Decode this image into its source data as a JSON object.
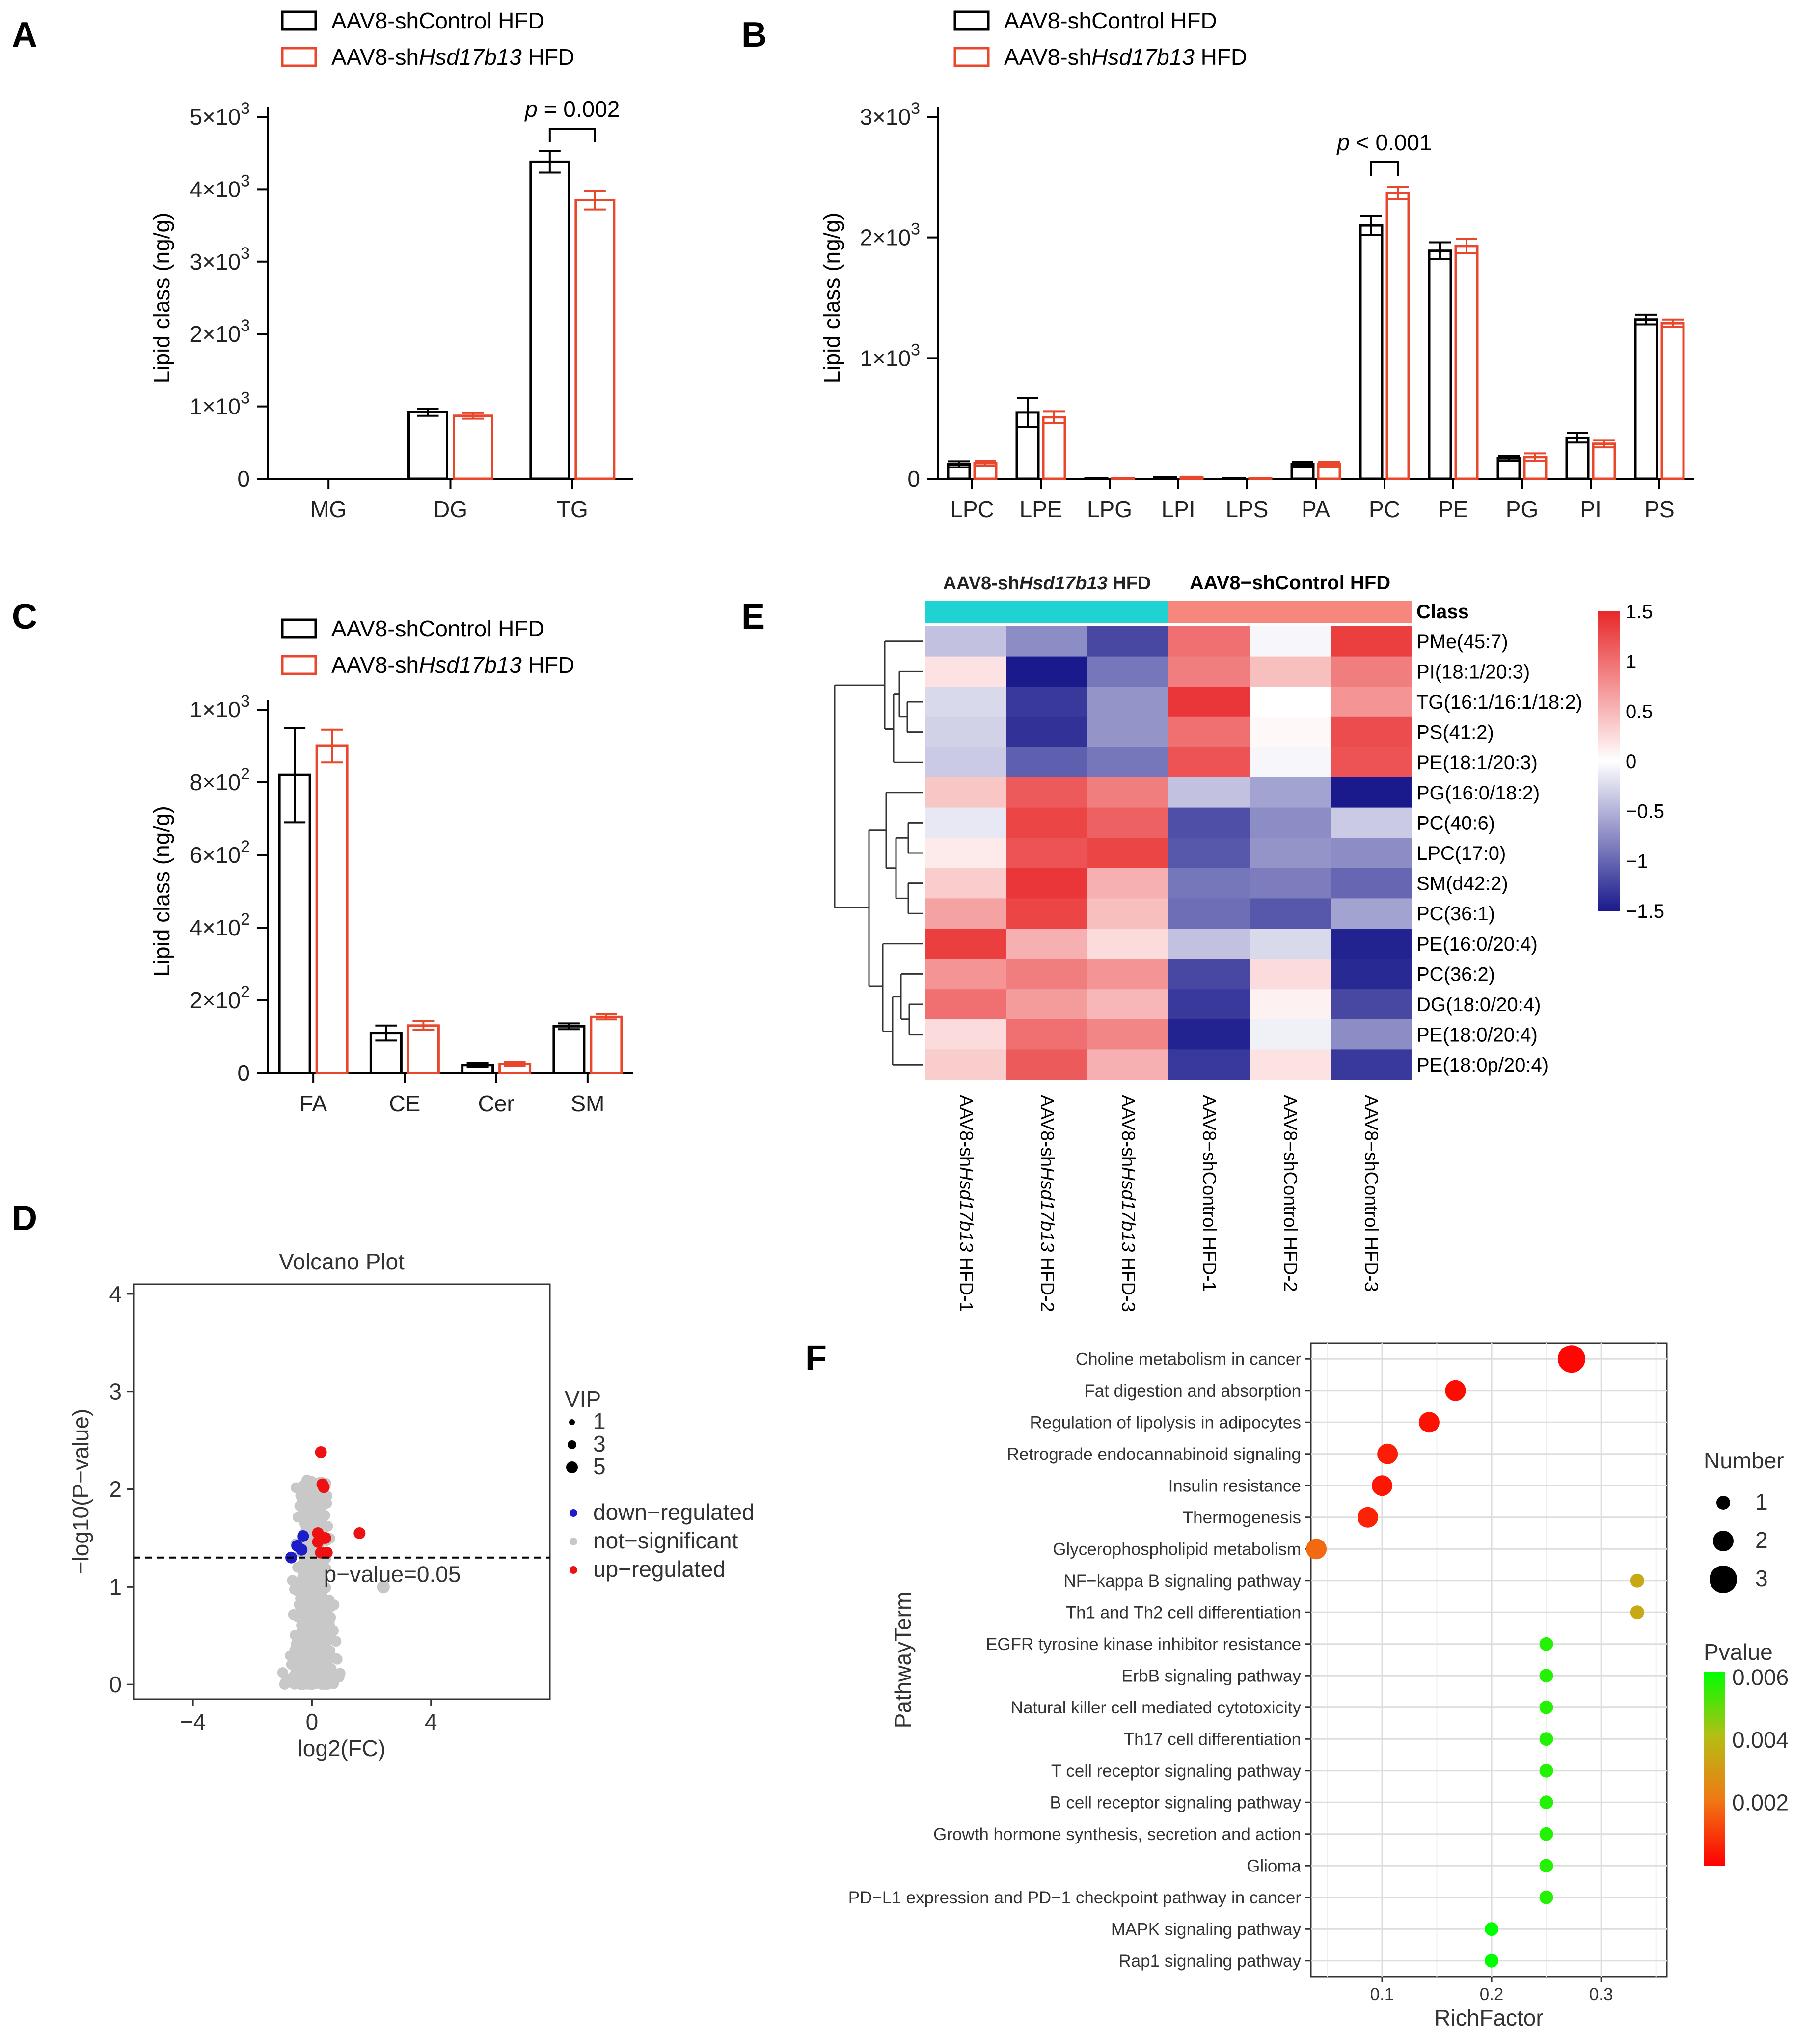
{
  "panel_labels": {
    "A": "A",
    "B": "B",
    "C": "C",
    "D": "D",
    "E": "E",
    "F": "F"
  },
  "legend_groups": {
    "control": "AAV8-shControl HFD",
    "treat_prefix": "AAV8-sh",
    "treat_gene": "Hsd17b13",
    "treat_suffix": " HFD"
  },
  "colors": {
    "control": "#000000",
    "treat": "#e8472b",
    "hm_low": "#1a1a8c",
    "hm_mid": "#ffffff",
    "hm_high": "#e8282a",
    "cyan": "#1fd3d3",
    "salmon": "#f5877c"
  },
  "chart_data": [
    {
      "id": "A",
      "type": "bar",
      "ylabel": "Lipid class (ng/g)",
      "ylim": [
        0,
        5000
      ],
      "yticks": [
        {
          "value": 0,
          "base": "0",
          "exp": ""
        },
        {
          "value": 1000,
          "base": "1×10",
          "exp": "3"
        },
        {
          "value": 2000,
          "base": "2×10",
          "exp": "3"
        },
        {
          "value": 3000,
          "base": "3×10",
          "exp": "3"
        },
        {
          "value": 4000,
          "base": "4×10",
          "exp": "3"
        },
        {
          "value": 5000,
          "base": "5×10",
          "exp": "3"
        }
      ],
      "categories": [
        "MG",
        "DG",
        "TG"
      ],
      "series": [
        {
          "name": "AAV8-shControl HFD",
          "values": [
            0,
            920,
            4380
          ],
          "errors": [
            0,
            50,
            150
          ]
        },
        {
          "name": "AAV8-shHsd17b13 HFD",
          "values": [
            0,
            870,
            3850
          ],
          "errors": [
            0,
            40,
            130
          ]
        }
      ],
      "annotation": {
        "category": "TG",
        "text": "p = 0.002",
        "p": "p",
        "rest": " = 0.002"
      }
    },
    {
      "id": "B",
      "type": "bar",
      "ylabel": "Lipid class (ng/g)",
      "ylim": [
        0,
        3000
      ],
      "yticks": [
        {
          "value": 0,
          "base": "0",
          "exp": ""
        },
        {
          "value": 1000,
          "base": "1×10",
          "exp": "3"
        },
        {
          "value": 2000,
          "base": "2×10",
          "exp": "3"
        },
        {
          "value": 3000,
          "base": "3×10",
          "exp": "3"
        }
      ],
      "categories": [
        "LPC",
        "LPE",
        "LPG",
        "LPI",
        "LPS",
        "PA",
        "PC",
        "PE",
        "PG",
        "PI",
        "PS"
      ],
      "series": [
        {
          "name": "AAV8-shControl HFD",
          "values": [
            120,
            550,
            2,
            10,
            2,
            120,
            2100,
            1890,
            170,
            340,
            1320
          ],
          "errors": [
            25,
            120,
            1,
            5,
            1,
            20,
            80,
            70,
            20,
            40,
            40
          ]
        },
        {
          "name": "AAV8-shHsd17b13 HFD",
          "values": [
            130,
            510,
            2,
            12,
            2,
            120,
            2370,
            1930,
            180,
            290,
            1290
          ],
          "errors": [
            20,
            50,
            1,
            5,
            1,
            20,
            50,
            60,
            30,
            30,
            30
          ]
        }
      ],
      "annotation": {
        "category": "PC",
        "text": "p < 0.001",
        "p": "p",
        "rest": " < 0.001"
      }
    },
    {
      "id": "C",
      "type": "bar",
      "ylabel": "Lipid class (ng/g)",
      "ylim": [
        0,
        1000
      ],
      "yticks": [
        {
          "value": 0,
          "base": "0",
          "exp": ""
        },
        {
          "value": 200,
          "base": "2×10",
          "exp": "2"
        },
        {
          "value": 400,
          "base": "4×10",
          "exp": "2"
        },
        {
          "value": 600,
          "base": "6×10",
          "exp": "2"
        },
        {
          "value": 800,
          "base": "8×10",
          "exp": "2"
        },
        {
          "value": 1000,
          "base": "1×10",
          "exp": "3"
        }
      ],
      "categories": [
        "FA",
        "CE",
        "Cer",
        "SM"
      ],
      "series": [
        {
          "name": "AAV8-shControl HFD",
          "values": [
            820,
            110,
            22,
            128
          ],
          "errors": [
            130,
            20,
            5,
            8
          ]
        },
        {
          "name": "AAV8-shHsd17b13 HFD",
          "values": [
            900,
            130,
            25,
            155
          ],
          "errors": [
            45,
            12,
            5,
            8
          ]
        }
      ]
    },
    {
      "id": "D",
      "type": "scatter",
      "title": "Volcano Plot",
      "xlabel": "log2(FC)",
      "ylabel": "−log10(P−value)",
      "xlim": [
        -6,
        8
      ],
      "ylim": [
        -0.15,
        4.1
      ],
      "xticks": [
        "−4",
        "0",
        "4"
      ],
      "xtick_values": [
        -4,
        0,
        4
      ],
      "yticks": [
        "0",
        "1",
        "2",
        "3",
        "4"
      ],
      "threshold_label": "p−value=0.05",
      "threshold": 1.3,
      "vip_title": "VIP",
      "vip_values": [
        "1",
        "3",
        "5"
      ],
      "groups": [
        "down−regulated",
        "not−significant",
        "up−regulated"
      ],
      "down_points": [
        [
          -0.3,
          1.52
        ],
        [
          -0.7,
          1.3
        ],
        [
          -0.5,
          1.42
        ],
        [
          -0.35,
          1.38
        ]
      ],
      "up_points": [
        [
          0.3,
          2.38
        ],
        [
          0.35,
          2.05
        ],
        [
          0.4,
          2.02
        ],
        [
          0.2,
          1.55
        ],
        [
          0.45,
          1.5
        ],
        [
          1.6,
          1.55
        ],
        [
          0.3,
          1.35
        ],
        [
          0.5,
          1.35
        ],
        [
          0.2,
          1.46
        ]
      ]
    },
    {
      "id": "E",
      "type": "heatmap",
      "groups": [
        "AAV8-shHsd17b13 HFD",
        "AAV8−shControl HFD"
      ],
      "class_label": "Class",
      "rows": [
        "PMe(45:7)",
        "PI(18:1/20:3)",
        "TG(16:1/16:1/18:2)",
        "PS(41:2)",
        "PE(18:1/20:3)",
        "PG(16:0/18:2)",
        "PC(40:6)",
        "LPC(17:0)",
        "SM(d42:2)",
        "PC(36:1)",
        "PE(16:0/20:4)",
        "PC(36:2)",
        "DG(18:0/20:4)",
        "PE(18:0/20:4)",
        "PE(18:0p/20:4)"
      ],
      "columns": [
        "AAV8-shHsd17b13 HFD-1",
        "AAV8-shHsd17b13 HFD-2",
        "AAV8-shHsd17b13 HFD-3",
        "AAV8−shControl HFD-1",
        "AAV8−shControl HFD-2",
        "AAV8−shControl HFD-3"
      ],
      "column_labels": [
        {
          "pre": "AAV8-sh",
          "gene": "Hsd17b13",
          "post": " HFD-1"
        },
        {
          "pre": "AAV8-sh",
          "gene": "Hsd17b13",
          "post": " HFD-2"
        },
        {
          "pre": "AAV8-sh",
          "gene": "Hsd17b13",
          "post": " HFD-3"
        },
        {
          "pre": "AAV8−shControl HFD-1",
          "gene": "",
          "post": ""
        },
        {
          "pre": "AAV8−shControl HFD-2",
          "gene": "",
          "post": ""
        },
        {
          "pre": "AAV8−shControl HFD-3",
          "gene": "",
          "post": ""
        }
      ],
      "values": [
        [
          -0.4,
          -0.75,
          -1.2,
          1.0,
          -0.05,
          1.35
        ],
        [
          0.2,
          -1.5,
          -0.9,
          0.9,
          0.45,
          0.9
        ],
        [
          -0.25,
          -1.3,
          -0.7,
          1.4,
          0.0,
          0.75
        ],
        [
          -0.3,
          -1.35,
          -0.7,
          1.0,
          0.05,
          1.25
        ],
        [
          -0.35,
          -1.05,
          -0.9,
          1.2,
          -0.05,
          1.2
        ],
        [
          0.4,
          1.15,
          0.9,
          -0.4,
          -0.6,
          -1.5
        ],
        [
          -0.15,
          1.3,
          1.1,
          -1.15,
          -0.75,
          -0.35
        ],
        [
          0.15,
          1.2,
          1.3,
          -1.1,
          -0.7,
          -0.75
        ],
        [
          0.35,
          1.4,
          0.55,
          -0.9,
          -0.85,
          -1.0
        ],
        [
          0.65,
          1.3,
          0.45,
          -0.95,
          -1.1,
          -0.6
        ],
        [
          1.35,
          0.55,
          0.25,
          -0.4,
          -0.25,
          -1.45
        ],
        [
          0.75,
          0.9,
          0.75,
          -1.2,
          0.25,
          -1.4
        ],
        [
          1.0,
          0.7,
          0.5,
          -1.3,
          0.1,
          -1.2
        ],
        [
          0.25,
          1.0,
          0.85,
          -1.45,
          -0.1,
          -0.75
        ],
        [
          0.35,
          1.15,
          0.55,
          -1.3,
          0.2,
          -1.3
        ]
      ],
      "scale_min": -1.5,
      "scale_max": 1.5,
      "colorbar_ticks": [
        "1.5",
        "1",
        "0.5",
        "0",
        "−0.5",
        "−1",
        "−1.5"
      ],
      "colorbar_values": [
        1.5,
        1,
        0.5,
        0,
        -0.5,
        -1,
        -1.5
      ]
    },
    {
      "id": "F",
      "type": "scatter",
      "xlabel": "RichFactor",
      "ylabel": "PathwayTerm",
      "xlim": [
        0.035,
        0.36
      ],
      "xticks": [
        "0.1",
        "0.2",
        "0.3"
      ],
      "xtick_values": [
        0.1,
        0.2,
        0.3
      ],
      "size_legend_title": "Number",
      "size_values": [
        "1",
        "2",
        "3"
      ],
      "color_legend_title": "Pvalue",
      "color_ticks": [
        "0.006",
        "0.004",
        "0.002"
      ],
      "color_tick_values": [
        0.006,
        0.004,
        0.002
      ],
      "p_min": 0.0,
      "p_max": 0.0062,
      "terms": [
        "Choline metabolism in cancer",
        "Fat digestion and absorption",
        "Regulation of lipolysis in adipocytes",
        "Retrograde endocannabinoid signaling",
        "Insulin resistance",
        "Thermogenesis",
        "Glycerophospholipid metabolism",
        "NF−kappa B signaling pathway",
        "Th1 and Th2 cell differentiation",
        "EGFR tyrosine kinase inhibitor resistance",
        "ErbB signaling pathway",
        "Natural killer cell mediated cytotoxicity",
        "Th17 cell differentiation",
        "T cell receptor signaling pathway",
        "B cell receptor signaling pathway",
        "Growth hormone synthesis, secretion and action",
        "Glioma",
        "PD−L1 expression and PD−1 checkpoint pathway in cancer",
        "MAPK signaling pathway",
        "Rap1 signaling pathway"
      ],
      "rich_factor": [
        0.273,
        0.167,
        0.143,
        0.105,
        0.1,
        0.087,
        0.04,
        0.333,
        0.333,
        0.25,
        0.25,
        0.25,
        0.25,
        0.25,
        0.25,
        0.25,
        0.25,
        0.25,
        0.2,
        0.2
      ],
      "number": [
        3,
        2,
        2,
        2,
        2,
        2,
        2,
        1,
        1,
        1,
        1,
        1,
        1,
        1,
        1,
        1,
        1,
        1,
        1,
        1
      ],
      "pvalue": [
        0.0001,
        0.0002,
        0.0003,
        0.0005,
        0.0004,
        0.0006,
        0.0018,
        0.0035,
        0.0035,
        0.0058,
        0.0058,
        0.0058,
        0.0058,
        0.0058,
        0.0058,
        0.0058,
        0.0058,
        0.0058,
        0.0062,
        0.0062
      ]
    }
  ]
}
